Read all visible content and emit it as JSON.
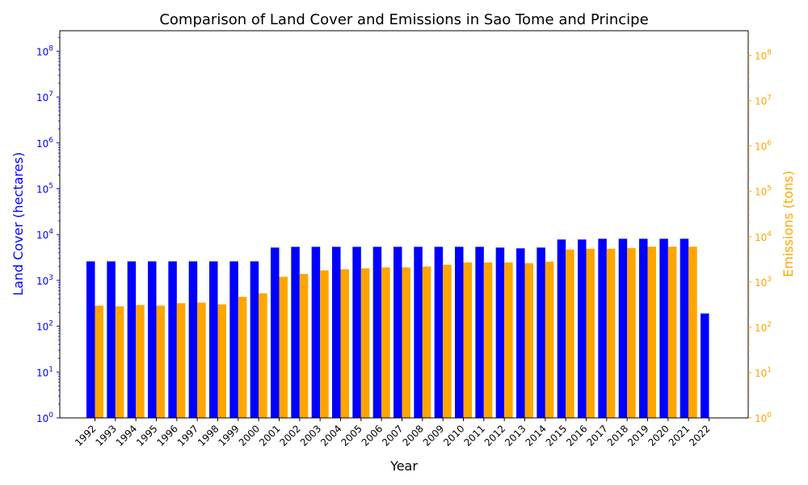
{
  "chart_data": {
    "type": "bar",
    "title": "Comparison of Land Cover and Emissions in Sao Tome and Principe",
    "xlabel": "Year",
    "ylabel_left": "Land Cover (hectares)",
    "ylabel_right": "Emissions (tons)",
    "yscale": "log",
    "ylim_left": [
      1,
      280000000
    ],
    "ylim_right": [
      1,
      350000000
    ],
    "left_axis_color": "#0000ff",
    "right_axis_color": "#ffa500",
    "grid": false,
    "left_ticks": [
      {
        "value": 1,
        "base": "10",
        "exp": "0"
      },
      {
        "value": 10,
        "base": "10",
        "exp": "1"
      },
      {
        "value": 100,
        "base": "10",
        "exp": "2"
      },
      {
        "value": 1000,
        "base": "10",
        "exp": "3"
      },
      {
        "value": 10000,
        "base": "10",
        "exp": "4"
      },
      {
        "value": 100000,
        "base": "10",
        "exp": "5"
      },
      {
        "value": 1000000,
        "base": "10",
        "exp": "6"
      },
      {
        "value": 10000000,
        "base": "10",
        "exp": "7"
      },
      {
        "value": 100000000,
        "base": "10",
        "exp": "8"
      }
    ],
    "right_ticks": [
      {
        "value": 1,
        "base": "10",
        "exp": "0"
      },
      {
        "value": 10,
        "base": "10",
        "exp": "1"
      },
      {
        "value": 100,
        "base": "10",
        "exp": "2"
      },
      {
        "value": 1000,
        "base": "10",
        "exp": "3"
      },
      {
        "value": 10000,
        "base": "10",
        "exp": "4"
      },
      {
        "value": 100000,
        "base": "10",
        "exp": "5"
      },
      {
        "value": 1000000,
        "base": "10",
        "exp": "6"
      },
      {
        "value": 10000000,
        "base": "10",
        "exp": "7"
      },
      {
        "value": 100000000,
        "base": "10",
        "exp": "8"
      }
    ],
    "categories": [
      "1992",
      "1993",
      "1994",
      "1995",
      "1996",
      "1997",
      "1998",
      "1999",
      "2000",
      "2001",
      "2002",
      "2003",
      "2004",
      "2005",
      "2006",
      "2007",
      "2008",
      "2009",
      "2010",
      "2011",
      "2012",
      "2013",
      "2014",
      "2015",
      "2016",
      "2017",
      "2018",
      "2019",
      "2020",
      "2021",
      "2022"
    ],
    "series": [
      {
        "name": "",
        "axis": "left",
        "color": "#0000ff",
        "values": [
          2600,
          2600,
          2600,
          2600,
          2600,
          2600,
          2600,
          2600,
          2600,
          5200,
          5400,
          5400,
          5400,
          5400,
          5400,
          5400,
          5400,
          5400,
          5400,
          5400,
          5200,
          5000,
          5200,
          7800,
          7800,
          8100,
          8100,
          8100,
          8100,
          8100,
          190
        ]
      },
      {
        "name": "",
        "axis": "right",
        "color": "#ffa500",
        "values": [
          300,
          290,
          310,
          300,
          340,
          350,
          320,
          470,
          560,
          1300,
          1500,
          1800,
          1900,
          2000,
          2100,
          2100,
          2200,
          2400,
          2700,
          2700,
          2700,
          2600,
          2800,
          5200,
          5400,
          5400,
          5600,
          6000,
          6000,
          6000,
          null
        ]
      }
    ]
  }
}
